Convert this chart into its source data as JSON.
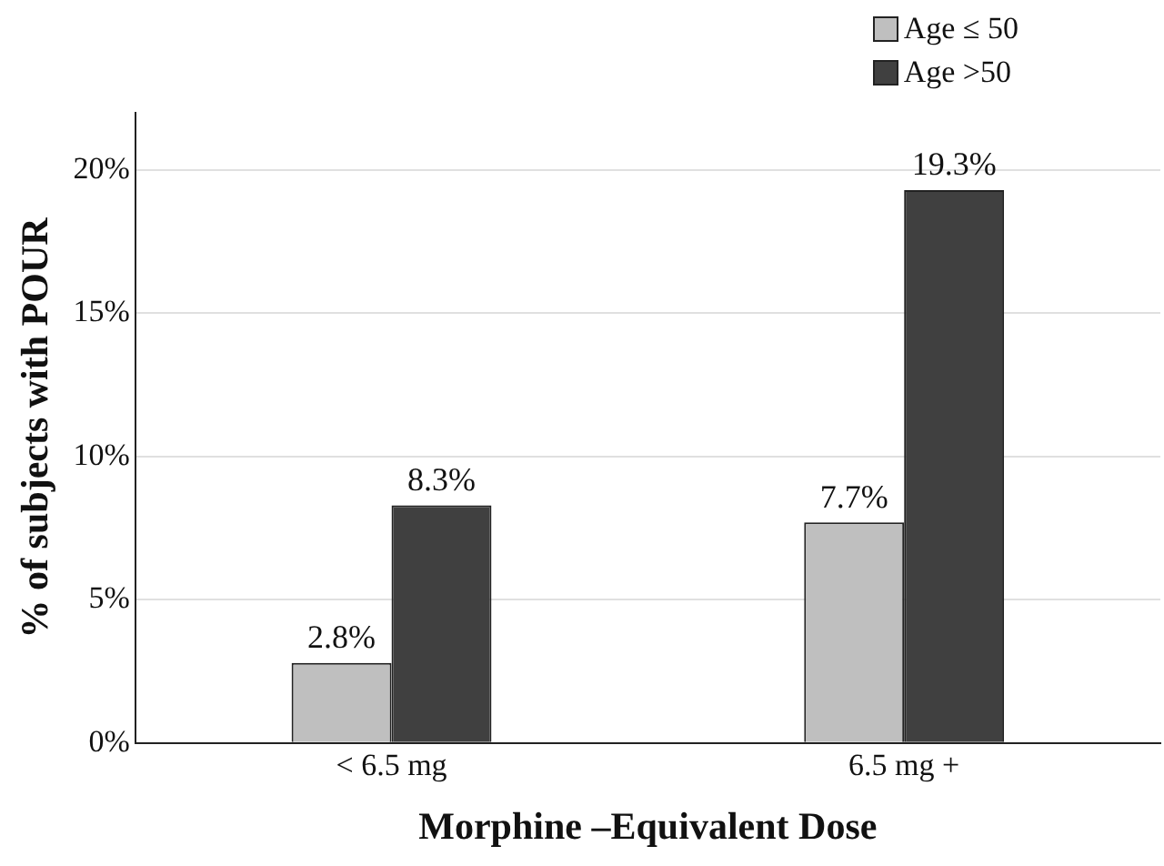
{
  "chart_data": {
    "type": "bar",
    "xlabel": "Morphine –Equivalent Dose",
    "ylabel": "% of subjects with POUR",
    "categories": [
      "< 6.5 mg",
      "6.5 mg +"
    ],
    "series": [
      {
        "name": "Age ≤ 50",
        "color": "#bfbfbf",
        "values": [
          2.8,
          7.7
        ],
        "value_labels": [
          "2.8%",
          "7.7%"
        ]
      },
      {
        "name": "Age >50",
        "color": "#404040",
        "values": [
          8.3,
          19.3
        ],
        "value_labels": [
          "8.3%",
          "19.3%"
        ]
      }
    ],
    "ylim": [
      0,
      22
    ],
    "yticks": [
      {
        "value": 0,
        "label": "0%"
      },
      {
        "value": 5,
        "label": "5%"
      },
      {
        "value": 10,
        "label": "10%"
      },
      {
        "value": 15,
        "label": "15%"
      },
      {
        "value": 20,
        "label": "20%"
      }
    ],
    "grid": "y",
    "legend": "top right"
  }
}
